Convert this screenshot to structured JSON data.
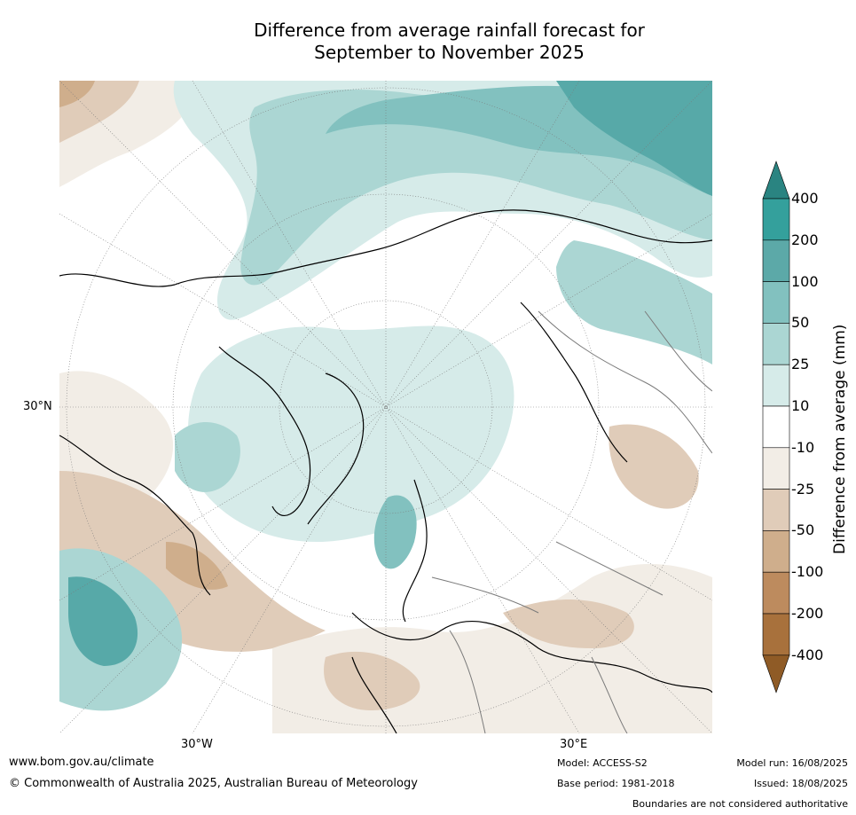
{
  "title_line1": "Difference from average rainfall forecast for",
  "title_line2": "September to November 2025",
  "map": {
    "lat_label": "30°N",
    "lon_labels": [
      "30°W",
      "30°E"
    ],
    "colors": {
      "ocean_base": "#ffffff",
      "wet_light": "#d6ebe9",
      "wet_mid": "#abd6d3",
      "wet_high": "#82c1bf",
      "wet_very_high": "#57a9a8",
      "dry_light": "#f2ede6",
      "dry_mid": "#e0ccb9",
      "dry_high": "#cfae8c",
      "coast": "#000000",
      "border": "#7a7a7a"
    }
  },
  "legend": {
    "ticks": [
      "400",
      "200",
      "100",
      "50",
      "25",
      "10",
      "-10",
      "-25",
      "-50",
      "-100",
      "-200",
      "-400"
    ],
    "colors": [
      "#2a8481",
      "#34a09c",
      "#5ca9a8",
      "#82c1bf",
      "#abd6d3",
      "#d6ebe9",
      "#ffffff",
      "#f2ede6",
      "#e0ccb9",
      "#cfae8c",
      "#bd8b5e",
      "#a8713c",
      "#8f5b26"
    ],
    "label": "Difference from average (mm)"
  },
  "footer": {
    "website": "www.bom.gov.au/climate",
    "copyright": "© Commonwealth of Australia 2025, Australian Bureau of Meteorology",
    "model": "Model: ACCESS-S2",
    "base_period": "Base period: 1981-2018",
    "model_run": "Model run: 16/08/2025",
    "issued": "Issued: 18/08/2025",
    "disclaimer": "Boundaries are not considered authoritative"
  }
}
